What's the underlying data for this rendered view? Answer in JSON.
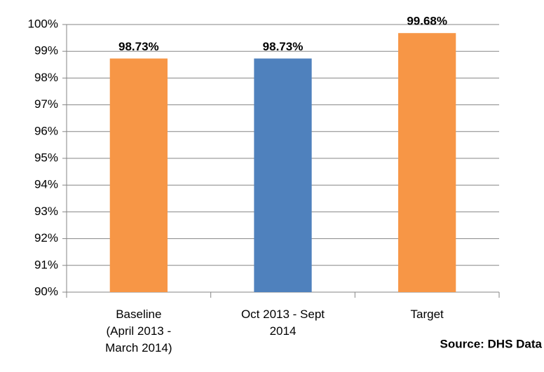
{
  "chart_data": {
    "type": "bar",
    "categories": [
      "Baseline\n(April 2013 -\nMarch 2014)",
      "Oct 2013 -  Sept\n2014",
      "Target"
    ],
    "values": [
      98.73,
      98.73,
      99.68
    ],
    "value_labels": [
      "98.73%",
      "98.73%",
      "99.68%"
    ],
    "colors": [
      "#f79646",
      "#4f81bd",
      "#f79646"
    ],
    "ylim": [
      90,
      100
    ],
    "yticks": [
      {
        "value": 90,
        "label": "90%"
      },
      {
        "value": 91,
        "label": "91%"
      },
      {
        "value": 92,
        "label": "92%"
      },
      {
        "value": 93,
        "label": "93%"
      },
      {
        "value": 94,
        "label": "94%"
      },
      {
        "value": 95,
        "label": "95%"
      },
      {
        "value": 96,
        "label": "96%"
      },
      {
        "value": 97,
        "label": "97%"
      },
      {
        "value": 98,
        "label": "98%"
      },
      {
        "value": 99,
        "label": "99%"
      },
      {
        "value": 100,
        "label": "100%"
      }
    ],
    "grid": true,
    "annotation": "Source: DHS Data"
  }
}
